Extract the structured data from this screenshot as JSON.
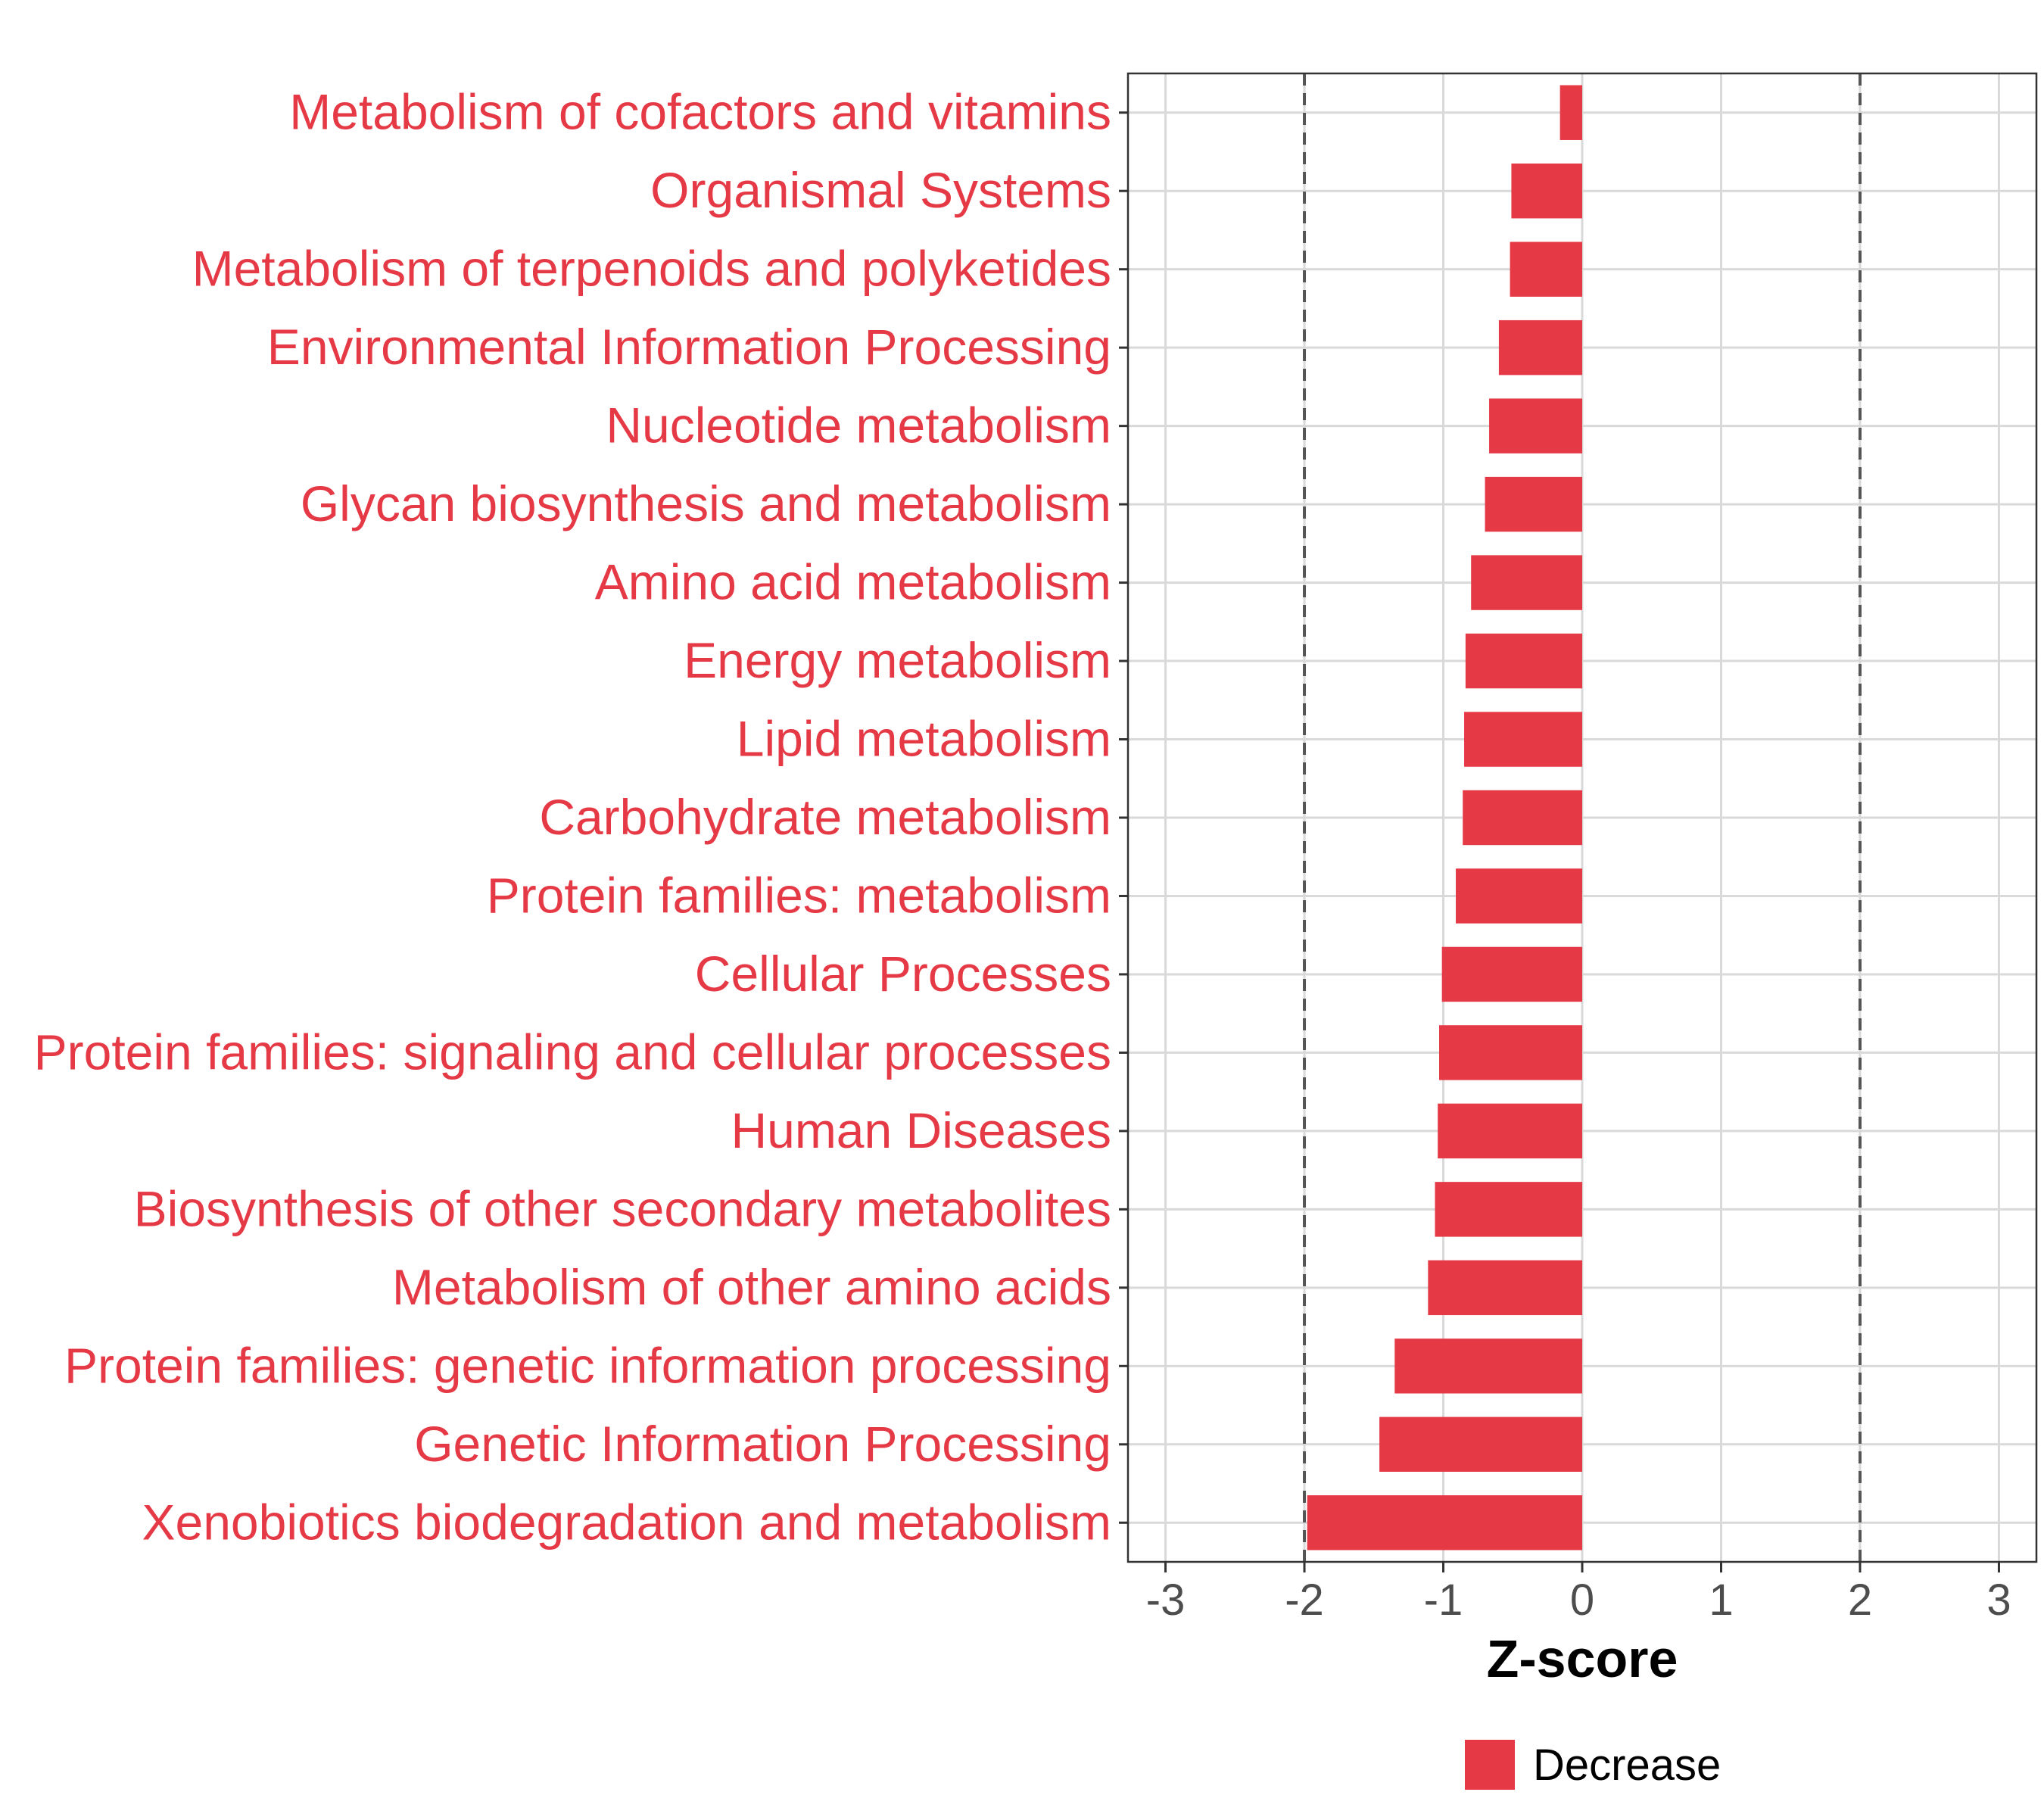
{
  "chart_data": {
    "type": "bar",
    "orientation": "horizontal",
    "categories": [
      "Metabolism of cofactors and vitamins",
      "Organismal Systems",
      "Metabolism of terpenoids and polyketides",
      "Environmental Information Processing",
      "Nucleotide metabolism",
      "Glycan biosynthesis and metabolism",
      "Amino acid metabolism",
      "Energy metabolism",
      "Lipid metabolism",
      "Carbohydrate metabolism",
      "Protein families: metabolism",
      "Cellular Processes",
      "Protein families: signaling and cellular processes",
      "Human Diseases",
      "Biosynthesis of other secondary metabolites",
      "Metabolism of other amino acids",
      "Protein families: genetic information processing",
      "Genetic Information Processing",
      "Xenobiotics biodegradation and metabolism"
    ],
    "values": [
      -0.16,
      -0.51,
      -0.52,
      -0.6,
      -0.67,
      -0.7,
      -0.8,
      -0.84,
      -0.85,
      -0.86,
      -0.91,
      -1.01,
      -1.03,
      -1.04,
      -1.06,
      -1.11,
      -1.35,
      -1.46,
      -1.98
    ],
    "xlabel": "Z-score",
    "ylabel": "",
    "xlim": [
      -3.27,
      3.27
    ],
    "xticks": [
      "-3",
      "-2",
      "-1",
      "0",
      "1",
      "2",
      "3"
    ],
    "tick_values": [
      -3,
      -2,
      -1,
      0,
      1,
      2,
      3
    ],
    "threshold_lines": [
      -2,
      2
    ],
    "legend": {
      "entries": [
        "Decrease"
      ],
      "position": "bottom"
    },
    "grid": true,
    "colors": {
      "bar": "#e63946",
      "label": "#e63946",
      "grid": "#d9d9d9",
      "threshold": "#555555"
    }
  }
}
